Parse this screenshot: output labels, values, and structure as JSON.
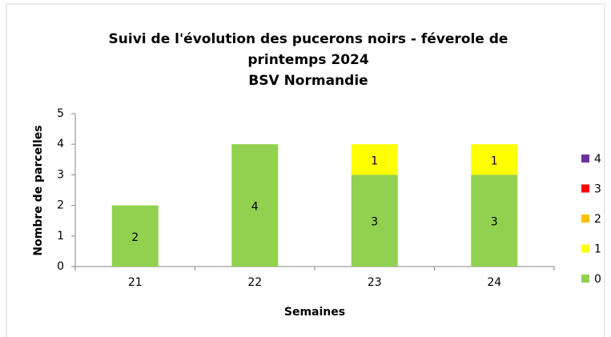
{
  "chart_data": {
    "type": "stacked_bar",
    "title": "Suivi de l'évolution des pucerons noirs - féverole de printemps 2024",
    "subtitle": "BSV Normandie",
    "x_label": "Semaines",
    "y_label": "Nombre de parcelles",
    "categories": [
      "21",
      "22",
      "23",
      "24"
    ],
    "series": [
      {
        "name": "0",
        "color": "#92d050",
        "values": [
          2,
          4,
          3,
          3
        ]
      },
      {
        "name": "1",
        "color": "#ffff00",
        "values": [
          0,
          0,
          1,
          1
        ]
      },
      {
        "name": "2",
        "color": "#ffc000",
        "values": [
          0,
          0,
          0,
          0
        ]
      },
      {
        "name": "3",
        "color": "#ff0000",
        "values": [
          0,
          0,
          0,
          0
        ]
      },
      {
        "name": "4",
        "color": "#7030a0",
        "values": [
          0,
          0,
          0,
          0
        ]
      }
    ],
    "ylim": [
      0,
      5
    ],
    "yticks": [
      0,
      1,
      2,
      3,
      4,
      5
    ],
    "grid": false,
    "legend": "right"
  }
}
